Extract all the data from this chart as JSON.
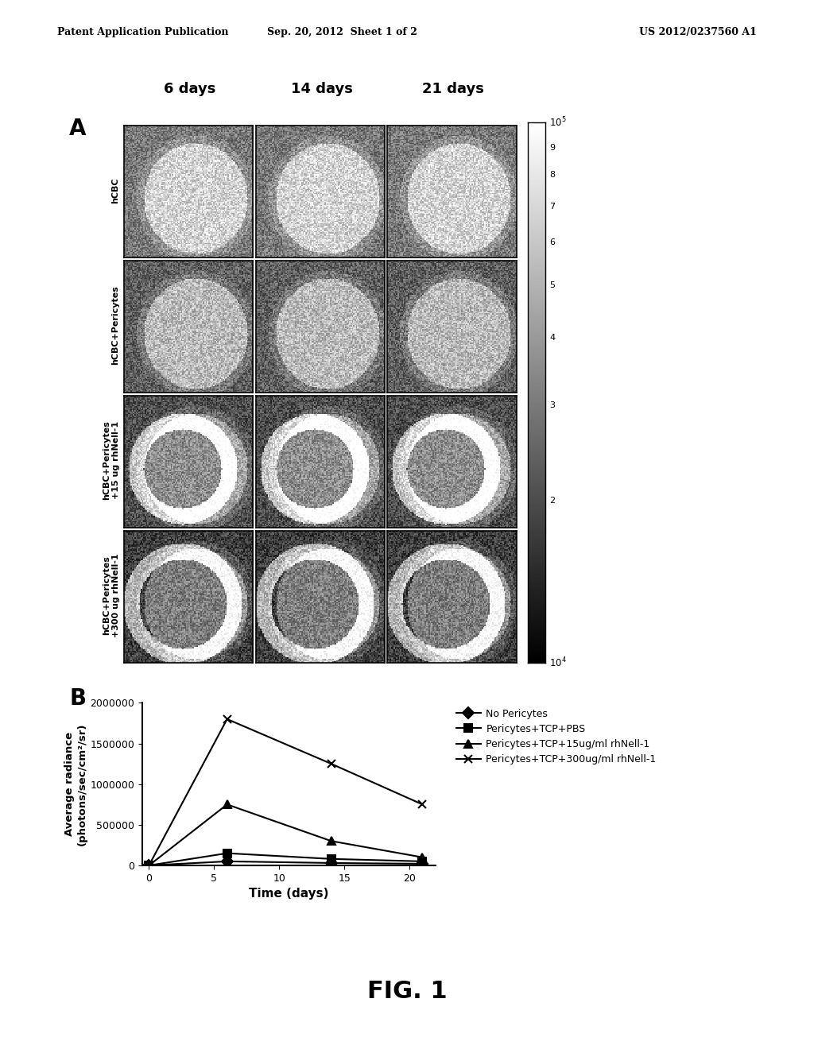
{
  "header_left": "Patent Application Publication",
  "header_center": "Sep. 20, 2012  Sheet 1 of 2",
  "header_right": "US 2012/0237560 A1",
  "panel_A_label": "A",
  "panel_B_label": "B",
  "col_labels": [
    "6 days",
    "14 days",
    "21 days"
  ],
  "row_labels": [
    "hCBC",
    "hCBC+Pericytes",
    "hCBC+Pericytes\n+15 ug rhNell-1",
    "hCBC+Pericytes\n+300 ug rhNell-1"
  ],
  "colorbar_tick_labels": [
    "10^5",
    "9",
    "8",
    "7",
    "6",
    "5",
    "4",
    "3",
    "2",
    "10^4"
  ],
  "colorbar_tick_fracs": [
    1.0,
    0.954,
    0.903,
    0.845,
    0.778,
    0.699,
    0.602,
    0.477,
    0.301,
    0.0
  ],
  "xlabel": "Time (days)",
  "ylabel": "Average radiance\n(photons/sec/cm²/sr)",
  "x_ticks": [
    0,
    5,
    10,
    15,
    20
  ],
  "ylim": [
    0,
    2000000
  ],
  "yticks": [
    0,
    500000,
    1000000,
    1500000,
    2000000
  ],
  "series": [
    {
      "key": "no_pericytes",
      "x": [
        0,
        6,
        14,
        21
      ],
      "y": [
        0,
        50000,
        30000,
        20000
      ],
      "label": "No Pericytes",
      "marker": "D"
    },
    {
      "key": "pericytes_tcp_pbs",
      "x": [
        0,
        6,
        14,
        21
      ],
      "y": [
        0,
        150000,
        80000,
        50000
      ],
      "label": "Pericytes+TCP+PBS",
      "marker": "s"
    },
    {
      "key": "pericytes_tcp_15",
      "x": [
        0,
        6,
        14,
        21
      ],
      "y": [
        0,
        750000,
        300000,
        100000
      ],
      "label": "Pericytes+TCP+15ug/ml rhNell-1",
      "marker": "^"
    },
    {
      "key": "pericytes_tcp_300",
      "x": [
        0,
        6,
        14,
        21
      ],
      "y": [
        0,
        1800000,
        1250000,
        750000
      ],
      "label": "Pericytes+TCP+300ug/ml rhNell-1",
      "marker": "x"
    }
  ],
  "fig1_label": "FIG. 1",
  "background_color": "#ffffff",
  "img_row_gray": [
    0.55,
    0.45,
    0.38,
    0.32
  ]
}
